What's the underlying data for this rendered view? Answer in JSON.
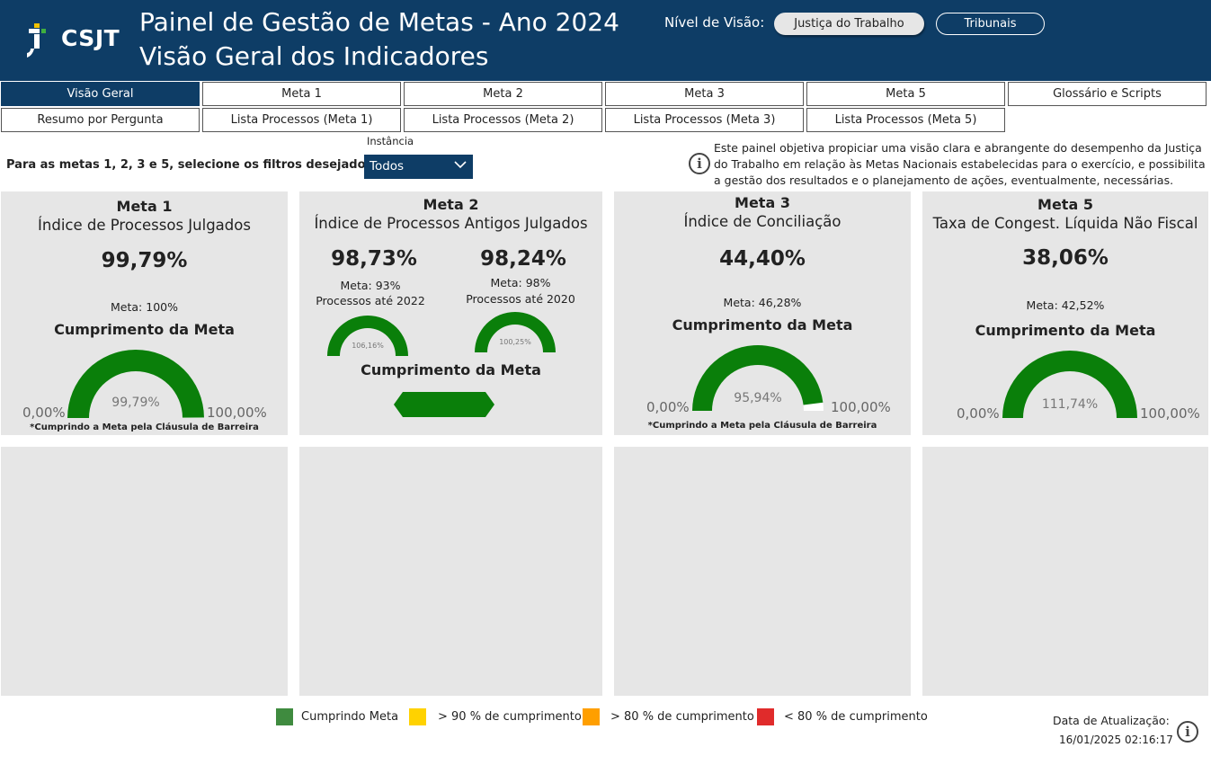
{
  "header": {
    "logo_text": "CSJT",
    "title_line1": "Painel de Gestão de Metas - Ano 2024",
    "title_line2": "Visão Geral dos Indicadores",
    "nivel_label": "Nível de Visão:",
    "nivel_options": [
      "Justiça do Trabalho",
      "Tribunais"
    ],
    "nivel_selected": "Justiça do Trabalho"
  },
  "tabs_row1": [
    "Visão Geral",
    "Meta 1",
    "Meta 2",
    "Meta 3",
    "Meta 5",
    "Glossário e Scripts"
  ],
  "tabs_row2": [
    "Resumo por Pergunta",
    "Lista Processos (Meta 1)",
    "Lista Processos (Meta 2)",
    "Lista Processos (Meta 3)",
    "Lista Processos (Meta 5)"
  ],
  "active_tab": "Visão Geral",
  "filters": {
    "label": "Para as metas 1, 2, 3 e 5, selecione os filtros desejados:",
    "instancia_label": "Instância",
    "instancia_value": "Todos"
  },
  "description": "Este painel objetiva propiciar uma visão clara e abrangente do desempenho da Justiça do Trabalho em relação às Metas Nacionais estabelecidas para o exercício, e possibilita a gestão dos resultados e o planejamento de ações, eventualmente, necessárias.",
  "info_icon": "info-icon",
  "cards": {
    "meta1": {
      "title": "Meta 1",
      "subtitle": "Índice de Processos Julgados",
      "value": "99,79%",
      "meta": "Meta: 100%",
      "cumprimento_label": "Cumprimento da Meta",
      "gauge_value": "99,79%",
      "gauge_fraction": 0.9979,
      "axis_min": "0,00%",
      "axis_max": "100,00%",
      "note": "*Cumprindo a Meta pela Cláusula de Barreira"
    },
    "meta2": {
      "title": "Meta 2",
      "subtitle": "Índice de Processos Antigos Julgados",
      "value_a": "98,73%",
      "meta_a": "Meta: 93%",
      "proc_a": "Processos até 2022",
      "gauge_a": "106,16%",
      "value_b": "98,24%",
      "meta_b": "Meta: 98%",
      "proc_b": "Processos até 2020",
      "gauge_b": "100,25%",
      "cumprimento_label": "Cumprimento da Meta"
    },
    "meta3": {
      "title": "Meta 3",
      "subtitle": "Índice de Conciliação",
      "value": "44,40%",
      "meta": "Meta: 46,28%",
      "cumprimento_label": "Cumprimento da Meta",
      "gauge_value": "95,94%",
      "gauge_fraction": 0.9594,
      "axis_min": "0,00%",
      "axis_max": "100,00%",
      "note": "*Cumprindo a Meta pela Cláusula de Barreira"
    },
    "meta5": {
      "title": "Meta 5",
      "subtitle": "Taxa de Congest. Líquida Não Fiscal",
      "value": "38,06%",
      "meta": "Meta: 42,52%",
      "cumprimento_label": "Cumprimento da Meta",
      "gauge_value": "111,74%",
      "gauge_fraction": 1.0,
      "axis_min": "0,00%",
      "axis_max": "100,00%"
    }
  },
  "legend": [
    {
      "label": "Cumprindo Meta",
      "color": "#3f8b3f"
    },
    {
      "label": "> 90 % de cumprimento",
      "color": "#ffd200"
    },
    {
      "label": "> 80 % de cumprimento",
      "color": "#ff9f00"
    },
    {
      "label": "< 80 % de cumprimento",
      "color": "#e02b2b"
    }
  ],
  "update": {
    "label": "Data de Atualização:",
    "date": "16/01/2025 02:16:17"
  },
  "colors": {
    "header_bg": "#0e3d66",
    "card_bg": "#e6e6e6",
    "gauge_fill": "#0a7f0a",
    "gauge_empty": "#ffffff"
  }
}
